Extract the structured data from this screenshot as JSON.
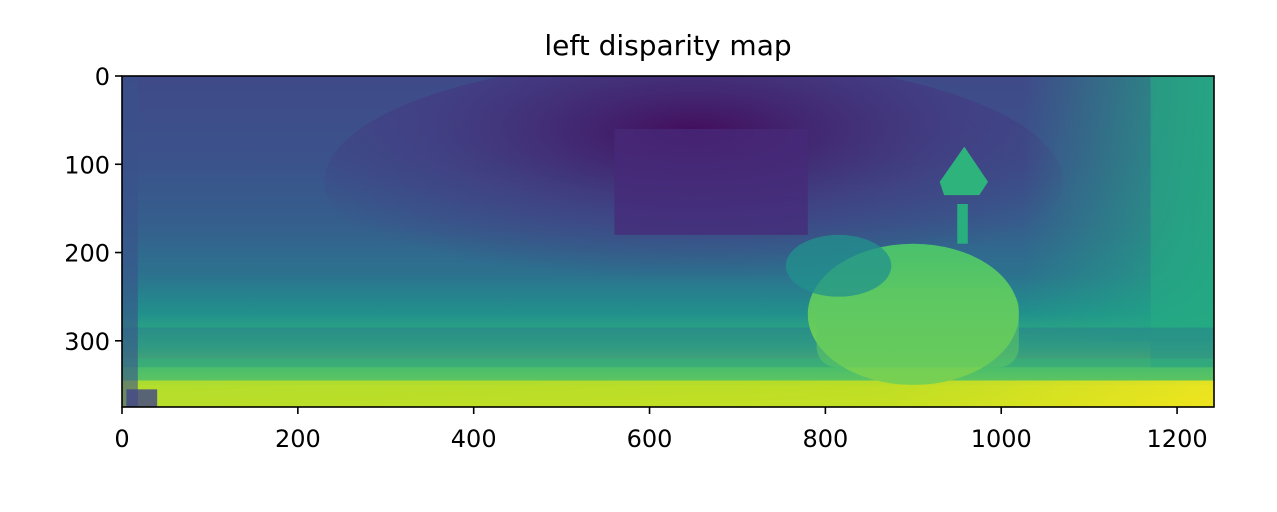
{
  "chart_data": {
    "type": "heatmap",
    "title": "left disparity map",
    "xlabel": "",
    "ylabel": "",
    "colormap": "viridis",
    "image_width": 1242,
    "image_height": 375,
    "xlim": [
      0,
      1242
    ],
    "ylim": [
      375,
      0
    ],
    "x_ticks": [
      0,
      200,
      400,
      600,
      800,
      1000,
      1200
    ],
    "y_ticks": [
      0,
      100,
      200,
      300
    ],
    "x_tick_labels": [
      "0",
      "200",
      "400",
      "600",
      "800",
      "1000",
      "1200"
    ],
    "y_tick_labels": [
      "0",
      "100",
      "200",
      "300"
    ],
    "grid": false,
    "colors": {
      "viridis_dark": "#440154",
      "viridis_purple": "#46317e",
      "viridis_blue": "#365c8d",
      "viridis_teal": "#277f8e",
      "viridis_green": "#1fa187",
      "viridis_lightgreen": "#4ac16d",
      "viridis_yellowgreen": "#a0da39",
      "viridis_yellow": "#fde725"
    }
  }
}
